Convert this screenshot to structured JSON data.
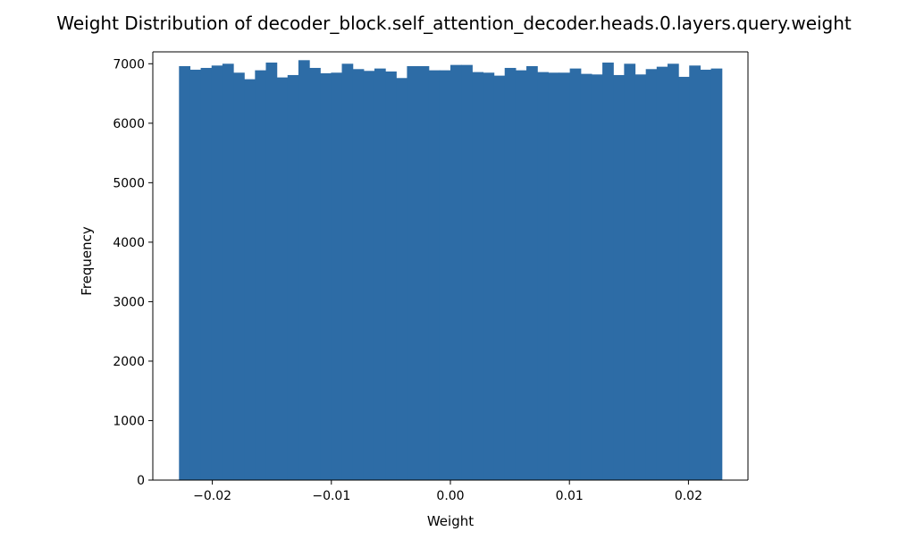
{
  "chart_data": {
    "type": "bar",
    "title": "Weight Distribution of decoder_block.self_attention_decoder.heads.0.layers.query.weight",
    "xlabel": "Weight",
    "ylabel": "Frequency",
    "xlim": [
      -0.025,
      0.025
    ],
    "ylim": [
      0,
      7200
    ],
    "grid": false,
    "bar_color": "#2d6ca6",
    "xticks": [
      {
        "value": -0.02,
        "label": "−0.02"
      },
      {
        "value": -0.01,
        "label": "−0.01"
      },
      {
        "value": 0.0,
        "label": "0.00"
      },
      {
        "value": 0.01,
        "label": "0.01"
      },
      {
        "value": 0.02,
        "label": "0.02"
      }
    ],
    "yticks": [
      {
        "value": 0,
        "label": "0"
      },
      {
        "value": 1000,
        "label": "1000"
      },
      {
        "value": 2000,
        "label": "2000"
      },
      {
        "value": 3000,
        "label": "3000"
      },
      {
        "value": 4000,
        "label": "4000"
      },
      {
        "value": 5000,
        "label": "5000"
      },
      {
        "value": 6000,
        "label": "6000"
      },
      {
        "value": 7000,
        "label": "7000"
      }
    ],
    "bin_range": [
      -0.0228,
      0.0228
    ],
    "values": [
      6960,
      6900,
      6930,
      6970,
      7000,
      6850,
      6740,
      6890,
      7020,
      6770,
      6810,
      7060,
      6930,
      6840,
      6850,
      7000,
      6910,
      6880,
      6920,
      6870,
      6760,
      6960,
      6960,
      6890,
      6890,
      6980,
      6980,
      6860,
      6850,
      6800,
      6930,
      6890,
      6960,
      6860,
      6850,
      6850,
      6920,
      6830,
      6820,
      7020,
      6810,
      7000,
      6820,
      6910,
      6950,
      7000,
      6780,
      6970,
      6900,
      6920
    ]
  }
}
